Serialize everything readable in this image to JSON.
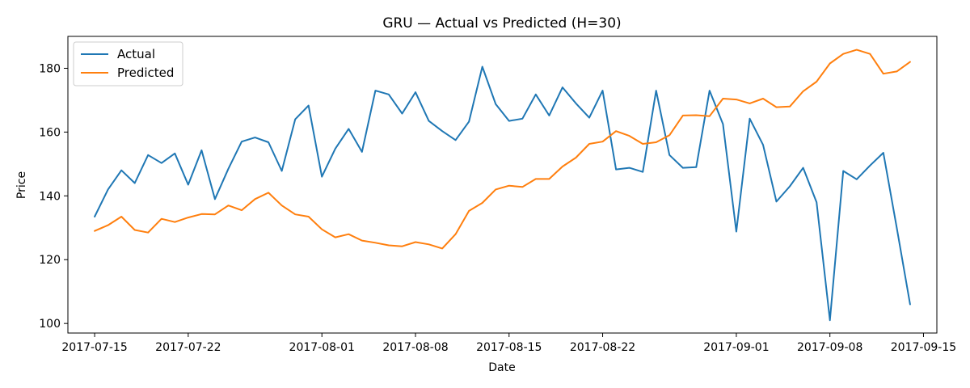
{
  "chart_data": {
    "type": "line",
    "title": "GRU — Actual vs Predicted (H=30)",
    "xlabel": "Date",
    "ylabel": "Price",
    "x_start": "2017-07-15",
    "x_range": [
      "2017-07-13",
      "2017-09-16"
    ],
    "ylim": [
      97,
      190
    ],
    "xticks": [
      "2017-07-15",
      "2017-07-22",
      "2017-08-01",
      "2017-08-08",
      "2017-08-15",
      "2017-08-22",
      "2017-09-01",
      "2017-09-08",
      "2017-09-15"
    ],
    "yticks": [
      100,
      120,
      140,
      160,
      180
    ],
    "grid": false,
    "legend": "top-left",
    "series": [
      {
        "name": "Actual",
        "color": "#1f77b4",
        "points": [
          [
            "2017-07-15",
            133.5
          ],
          [
            "2017-07-16",
            142.0
          ],
          [
            "2017-07-17",
            148.0
          ],
          [
            "2017-07-18",
            144.0
          ],
          [
            "2017-07-19",
            152.8
          ],
          [
            "2017-07-20",
            150.3
          ],
          [
            "2017-07-21",
            153.3
          ],
          [
            "2017-07-22",
            143.5
          ],
          [
            "2017-07-23",
            154.3
          ],
          [
            "2017-07-24",
            139.0
          ],
          [
            "2017-07-25",
            148.5
          ],
          [
            "2017-07-26",
            157.0
          ],
          [
            "2017-07-27",
            158.3
          ],
          [
            "2017-07-28",
            156.8
          ],
          [
            "2017-07-29",
            147.8
          ],
          [
            "2017-07-30",
            164.0
          ],
          [
            "2017-07-31",
            168.3
          ],
          [
            "2017-08-01",
            146.0
          ],
          [
            "2017-08-02",
            154.8
          ],
          [
            "2017-08-03",
            161.0
          ],
          [
            "2017-08-04",
            153.8
          ],
          [
            "2017-08-05",
            173.0
          ],
          [
            "2017-08-06",
            171.8
          ],
          [
            "2017-08-07",
            165.8
          ],
          [
            "2017-08-08",
            172.5
          ],
          [
            "2017-08-09",
            163.5
          ],
          [
            "2017-08-10",
            160.3
          ],
          [
            "2017-08-11",
            157.5
          ],
          [
            "2017-08-12",
            163.3
          ],
          [
            "2017-08-13",
            180.5
          ],
          [
            "2017-08-14",
            168.8
          ],
          [
            "2017-08-15",
            163.5
          ],
          [
            "2017-08-16",
            164.2
          ],
          [
            "2017-08-17",
            171.8
          ],
          [
            "2017-08-18",
            165.2
          ],
          [
            "2017-08-19",
            174.0
          ],
          [
            "2017-08-20",
            169.0
          ],
          [
            "2017-08-21",
            164.5
          ],
          [
            "2017-08-22",
            173.0
          ],
          [
            "2017-08-23",
            148.3
          ],
          [
            "2017-08-24",
            148.8
          ],
          [
            "2017-08-25",
            147.5
          ],
          [
            "2017-08-26",
            173.0
          ],
          [
            "2017-08-27",
            152.8
          ],
          [
            "2017-08-28",
            148.8
          ],
          [
            "2017-08-29",
            149.0
          ],
          [
            "2017-08-30",
            173.0
          ],
          [
            "2017-08-31",
            162.5
          ],
          [
            "2017-09-01",
            128.8
          ],
          [
            "2017-09-02",
            164.2
          ],
          [
            "2017-09-03",
            156.0
          ],
          [
            "2017-09-04",
            138.2
          ],
          [
            "2017-09-05",
            143.0
          ],
          [
            "2017-09-06",
            148.8
          ],
          [
            "2017-09-07",
            138.0
          ],
          [
            "2017-09-08",
            101.0
          ],
          [
            "2017-09-09",
            147.8
          ],
          [
            "2017-09-10",
            145.2
          ],
          [
            "2017-09-11",
            149.5
          ],
          [
            "2017-09-12",
            153.5
          ],
          [
            "2017-09-13",
            130.0
          ],
          [
            "2017-09-14",
            106.0
          ]
        ]
      },
      {
        "name": "Predicted",
        "color": "#ff7f0e",
        "points": [
          [
            "2017-07-15",
            129.0
          ],
          [
            "2017-07-16",
            130.8
          ],
          [
            "2017-07-17",
            133.5
          ],
          [
            "2017-07-18",
            129.3
          ],
          [
            "2017-07-19",
            128.5
          ],
          [
            "2017-07-20",
            132.8
          ],
          [
            "2017-07-21",
            131.8
          ],
          [
            "2017-07-22",
            133.2
          ],
          [
            "2017-07-23",
            134.3
          ],
          [
            "2017-07-24",
            134.2
          ],
          [
            "2017-07-25",
            137.0
          ],
          [
            "2017-07-26",
            135.5
          ],
          [
            "2017-07-27",
            139.0
          ],
          [
            "2017-07-28",
            141.0
          ],
          [
            "2017-07-29",
            137.0
          ],
          [
            "2017-07-30",
            134.2
          ],
          [
            "2017-07-31",
            133.5
          ],
          [
            "2017-08-01",
            129.5
          ],
          [
            "2017-08-02",
            127.0
          ],
          [
            "2017-08-03",
            128.0
          ],
          [
            "2017-08-04",
            126.0
          ],
          [
            "2017-08-05",
            125.3
          ],
          [
            "2017-08-06",
            124.5
          ],
          [
            "2017-08-07",
            124.2
          ],
          [
            "2017-08-08",
            125.5
          ],
          [
            "2017-08-09",
            124.8
          ],
          [
            "2017-08-10",
            123.5
          ],
          [
            "2017-08-11",
            128.0
          ],
          [
            "2017-08-12",
            135.3
          ],
          [
            "2017-08-13",
            137.8
          ],
          [
            "2017-08-14",
            142.0
          ],
          [
            "2017-08-15",
            143.2
          ],
          [
            "2017-08-16",
            142.8
          ],
          [
            "2017-08-17",
            145.3
          ],
          [
            "2017-08-18",
            145.3
          ],
          [
            "2017-08-19",
            149.2
          ],
          [
            "2017-08-20",
            152.0
          ],
          [
            "2017-08-21",
            156.3
          ],
          [
            "2017-08-22",
            157.0
          ],
          [
            "2017-08-23",
            160.3
          ],
          [
            "2017-08-24",
            158.8
          ],
          [
            "2017-08-25",
            156.3
          ],
          [
            "2017-08-26",
            156.8
          ],
          [
            "2017-08-27",
            159.0
          ],
          [
            "2017-08-28",
            165.2
          ],
          [
            "2017-08-29",
            165.3
          ],
          [
            "2017-08-30",
            165.0
          ],
          [
            "2017-08-31",
            170.5
          ],
          [
            "2017-09-01",
            170.2
          ],
          [
            "2017-09-02",
            169.0
          ],
          [
            "2017-09-03",
            170.5
          ],
          [
            "2017-09-04",
            167.8
          ],
          [
            "2017-09-05",
            168.0
          ],
          [
            "2017-09-06",
            172.8
          ],
          [
            "2017-09-07",
            175.8
          ],
          [
            "2017-09-08",
            181.5
          ],
          [
            "2017-09-09",
            184.5
          ],
          [
            "2017-09-10",
            185.8
          ],
          [
            "2017-09-11",
            184.5
          ],
          [
            "2017-09-12",
            178.3
          ],
          [
            "2017-09-13",
            179.0
          ],
          [
            "2017-09-14",
            182.0
          ]
        ]
      }
    ]
  }
}
